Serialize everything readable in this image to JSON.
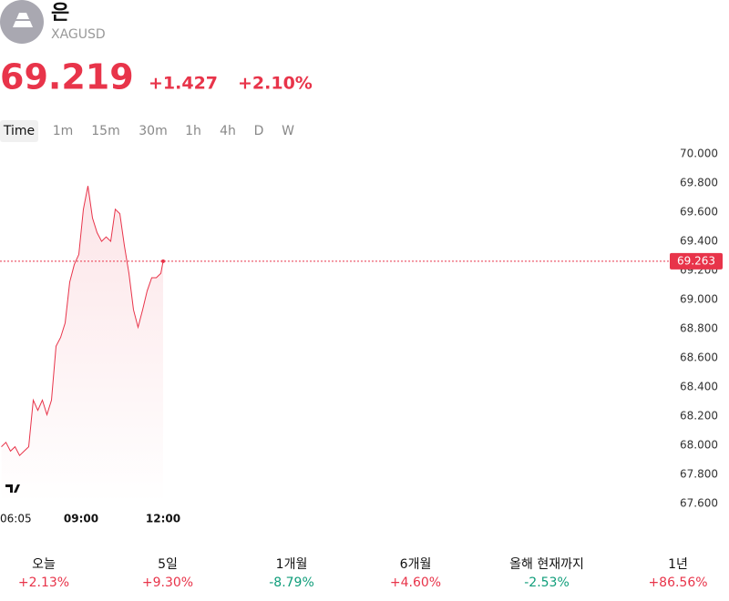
{
  "header": {
    "name": "은",
    "symbol": "XAGUSD",
    "price": "69.219",
    "change": "+1.427",
    "change_pct": "+2.10%"
  },
  "timeframes": [
    "Time",
    "1m",
    "15m",
    "30m",
    "1h",
    "4h",
    "D",
    "W"
  ],
  "chart_data": {
    "type": "line",
    "color": "#e8344a",
    "x": [
      "06:05",
      "06:15",
      "06:25",
      "06:35",
      "06:45",
      "06:55",
      "07:05",
      "07:15",
      "07:25",
      "07:35",
      "07:45",
      "07:55",
      "08:05",
      "08:15",
      "08:25",
      "08:35",
      "08:45",
      "08:55",
      "09:05",
      "09:15",
      "09:25",
      "09:35",
      "09:45",
      "09:55",
      "10:05",
      "10:15",
      "10:25",
      "10:35",
      "10:45",
      "10:55",
      "11:05",
      "11:15",
      "11:25",
      "11:35",
      "11:45",
      "11:55",
      "12:00"
    ],
    "values": [
      67.99,
      68.02,
      67.96,
      67.99,
      67.93,
      67.96,
      67.99,
      68.31,
      68.24,
      68.31,
      68.21,
      68.31,
      68.68,
      68.74,
      68.84,
      69.12,
      69.24,
      69.31,
      69.62,
      69.78,
      69.56,
      69.46,
      69.4,
      69.43,
      69.4,
      69.62,
      69.59,
      69.37,
      69.18,
      68.93,
      68.81,
      68.93,
      69.06,
      69.15,
      69.15,
      69.18,
      69.263
    ],
    "ylim": [
      67.6,
      70.0
    ],
    "yticks": [
      {
        "value": 67.6,
        "label": "67.600"
      },
      {
        "value": 67.8,
        "label": "67.800"
      },
      {
        "value": 68.0,
        "label": "68.000"
      },
      {
        "value": 68.2,
        "label": "68.200"
      },
      {
        "value": 68.4,
        "label": "68.400"
      },
      {
        "value": 68.6,
        "label": "68.600"
      },
      {
        "value": 68.8,
        "label": "68.800"
      },
      {
        "value": 69.0,
        "label": "69.000"
      },
      {
        "value": 69.2,
        "label": "69.200"
      },
      {
        "value": 69.4,
        "label": "69.400"
      },
      {
        "value": 69.6,
        "label": "69.600"
      },
      {
        "value": 69.8,
        "label": "69.800"
      },
      {
        "value": 70.0,
        "label": "70.000"
      }
    ],
    "xticks": [
      "06:05",
      "09:00",
      "12:00"
    ],
    "price_line": 69.263
  },
  "performance": [
    {
      "label": "오늘",
      "value": "+2.13%"
    },
    {
      "label": "5일",
      "value": "+9.30%"
    },
    {
      "label": "1개월",
      "value": "-8.79%"
    },
    {
      "label": "6개월",
      "value": "+4.60%"
    },
    {
      "label": "올해 현재까지",
      "value": "-2.53%"
    },
    {
      "label": "1년",
      "value": "+86.56%"
    }
  ]
}
